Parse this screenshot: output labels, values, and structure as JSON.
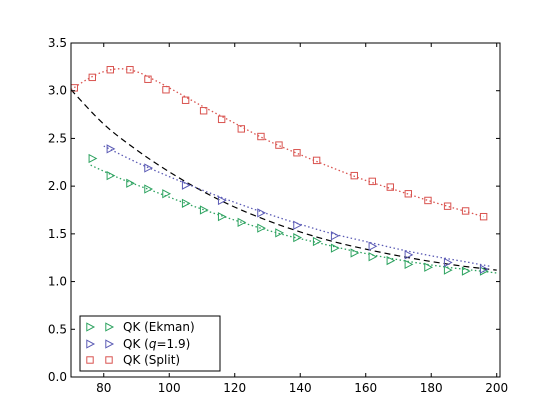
{
  "chart_data": {
    "type": "scatter",
    "title": "",
    "xlabel": "",
    "ylabel": "",
    "xlim": [
      70,
      201
    ],
    "ylim": [
      0.0,
      3.5
    ],
    "xticks": [
      80,
      100,
      120,
      140,
      160,
      180,
      200
    ],
    "xtick_labels": [
      "80",
      "100",
      "120",
      "140",
      "160",
      "180",
      "200"
    ],
    "yticks": [
      0.0,
      0.5,
      1.0,
      1.5,
      2.0,
      2.5,
      3.0,
      3.5
    ],
    "ytick_labels": [
      "0.0",
      "0.5",
      "1.0",
      "1.5",
      "2.0",
      "2.5",
      "3.0",
      "3.5"
    ],
    "grid": false,
    "legend_position": "lower-left",
    "series": [
      {
        "name": "QK (Ekman)",
        "marker": "triangle-right",
        "color": "#2ca25f",
        "line_style": "dotted",
        "x": [
          76.5,
          82,
          88,
          93.5,
          99,
          105,
          110.5,
          116,
          122,
          128,
          133.5,
          139,
          145,
          150.5,
          156.5,
          162,
          167.5,
          173,
          179,
          185,
          190.5,
          196
        ],
        "y": [
          2.29,
          2.11,
          2.03,
          1.97,
          1.92,
          1.82,
          1.75,
          1.68,
          1.62,
          1.56,
          1.51,
          1.46,
          1.42,
          1.35,
          1.3,
          1.26,
          1.22,
          1.18,
          1.15,
          1.12,
          1.11,
          1.11
        ],
        "fit_x": [
          76,
          85,
          95,
          105,
          115,
          125,
          135,
          145,
          155,
          165,
          175,
          185,
          195,
          200
        ],
        "fit_y": [
          2.22,
          2.08,
          1.95,
          1.82,
          1.7,
          1.59,
          1.49,
          1.41,
          1.33,
          1.26,
          1.2,
          1.15,
          1.11,
          1.09
        ]
      },
      {
        "name": "QK (q=1.9)",
        "marker": "triangle-right",
        "color": "#5b5bb5",
        "line_style": "dotted",
        "x": [
          82,
          93.5,
          105,
          116,
          128,
          139,
          150.5,
          162,
          173,
          185,
          196
        ],
        "y": [
          2.39,
          2.19,
          2.01,
          1.85,
          1.72,
          1.59,
          1.48,
          1.37,
          1.28,
          1.2,
          1.13
        ],
        "fit_x": [
          80,
          90,
          100,
          110,
          120,
          130,
          140,
          150,
          160,
          170,
          180,
          190,
          198
        ],
        "fit_y": [
          2.42,
          2.25,
          2.1,
          1.96,
          1.83,
          1.71,
          1.6,
          1.5,
          1.42,
          1.34,
          1.27,
          1.21,
          1.16
        ]
      },
      {
        "name": "QK (Split)",
        "marker": "square",
        "color": "#d9534f",
        "line_style": "dotted",
        "x": [
          71,
          76.5,
          82,
          88,
          93.5,
          99,
          105,
          110.5,
          116,
          122,
          128,
          133.5,
          139,
          145,
          156.5,
          162,
          167.5,
          173,
          179,
          185,
          190.5,
          196
        ],
        "y": [
          3.03,
          3.14,
          3.22,
          3.22,
          3.12,
          3.01,
          2.9,
          2.79,
          2.7,
          2.6,
          2.52,
          2.43,
          2.35,
          2.27,
          2.11,
          2.05,
          1.99,
          1.92,
          1.85,
          1.79,
          1.74,
          1.68
        ],
        "fit_x": [
          70,
          75,
          80,
          85,
          90,
          95,
          100,
          110,
          120,
          130,
          140,
          150,
          160,
          170,
          180,
          190,
          196
        ],
        "fit_y": [
          3.01,
          3.12,
          3.2,
          3.23,
          3.2,
          3.12,
          3.03,
          2.84,
          2.66,
          2.48,
          2.33,
          2.19,
          2.06,
          1.95,
          1.84,
          1.74,
          1.68
        ]
      }
    ],
    "reference_curve": {
      "line_style": "dashed",
      "color": "#000000",
      "x": [
        70,
        80,
        90,
        100,
        110,
        120,
        130,
        140,
        150,
        160,
        170,
        180,
        190,
        200
      ],
      "y": [
        3.01,
        2.65,
        2.38,
        2.15,
        1.95,
        1.78,
        1.64,
        1.52,
        1.42,
        1.34,
        1.27,
        1.21,
        1.16,
        1.12
      ]
    }
  },
  "legend": {
    "items": [
      {
        "text": "QK (Ekman)"
      },
      {
        "text_prefix": "QK (",
        "text_italic": "q",
        "text_suffix": "=1.9)"
      },
      {
        "text": "QK (Split)"
      }
    ]
  }
}
